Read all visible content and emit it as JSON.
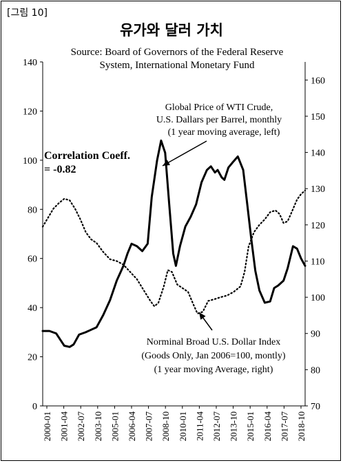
{
  "figure_tag": "[그림 10]",
  "title": "유가와 달러 가치",
  "source_lines": [
    "Source:  Board of Governors of the Federal Reserve",
    "System, International  Monetary Fund"
  ],
  "correlation_lines": [
    "Correlation Coeff.",
    "= -0.82"
  ],
  "chart_data": {
    "type": "line",
    "x_ticks": [
      "2000-01",
      "2001-04",
      "2002-07",
      "2003-10",
      "2005-01",
      "2006-04",
      "2007-07",
      "2008-10",
      "2010-01",
      "2011-04",
      "2012-07",
      "2013-10",
      "2015-01",
      "2016-04",
      "2017-07",
      "2018-10"
    ],
    "x_range": [
      2000.0,
      2019.5
    ],
    "y_left": {
      "min": 0,
      "max": 140,
      "ticks": [
        0,
        20,
        40,
        60,
        80,
        100,
        120,
        140
      ]
    },
    "y_right": {
      "min": 70,
      "max": 165,
      "ticks": [
        70,
        80,
        90,
        100,
        110,
        120,
        130,
        140,
        150,
        160
      ]
    },
    "series": [
      {
        "name": "Global Price of WTI Crude",
        "axis": "left",
        "style": "solid",
        "label_lines": [
          "Global Price of WTI Crude,",
          "U.S. Dallars per Barrel, monthly",
          "(1 year moving average, left)"
        ],
        "points": [
          [
            2000.0,
            30.5
          ],
          [
            2000.5,
            30.5
          ],
          [
            2001.0,
            29.5
          ],
          [
            2001.3,
            27
          ],
          [
            2001.6,
            24.5
          ],
          [
            2002.0,
            24
          ],
          [
            2002.3,
            25
          ],
          [
            2002.7,
            29
          ],
          [
            2003.2,
            30
          ],
          [
            2003.6,
            31
          ],
          [
            2004.0,
            32
          ],
          [
            2004.5,
            37
          ],
          [
            2005.0,
            43
          ],
          [
            2005.5,
            51
          ],
          [
            2006.0,
            57
          ],
          [
            2006.3,
            62
          ],
          [
            2006.6,
            66
          ],
          [
            2007.0,
            65
          ],
          [
            2007.4,
            63
          ],
          [
            2007.8,
            66
          ],
          [
            2008.1,
            85
          ],
          [
            2008.5,
            100
          ],
          [
            2008.8,
            108
          ],
          [
            2009.1,
            103
          ],
          [
            2009.4,
            82
          ],
          [
            2009.7,
            62
          ],
          [
            2009.9,
            57
          ],
          [
            2010.2,
            65
          ],
          [
            2010.6,
            73
          ],
          [
            2011.0,
            77
          ],
          [
            2011.4,
            82
          ],
          [
            2011.8,
            91
          ],
          [
            2012.2,
            96
          ],
          [
            2012.5,
            97.5
          ],
          [
            2012.8,
            95
          ],
          [
            2013.0,
            96
          ],
          [
            2013.3,
            93
          ],
          [
            2013.5,
            92
          ],
          [
            2013.8,
            97
          ],
          [
            2014.1,
            99
          ],
          [
            2014.5,
            101.5
          ],
          [
            2014.9,
            96
          ],
          [
            2015.2,
            82
          ],
          [
            2015.5,
            68
          ],
          [
            2015.8,
            55
          ],
          [
            2016.1,
            47
          ],
          [
            2016.5,
            42
          ],
          [
            2016.9,
            42.5
          ],
          [
            2017.2,
            48
          ],
          [
            2017.5,
            49
          ],
          [
            2017.9,
            51
          ],
          [
            2018.2,
            56
          ],
          [
            2018.6,
            65
          ],
          [
            2018.9,
            64
          ],
          [
            2019.2,
            60
          ],
          [
            2019.5,
            57
          ]
        ]
      },
      {
        "name": "Norminal Broad U.S. Dollar Index",
        "axis": "right",
        "style": "dotted",
        "label_lines": [
          "Norminal Broad U.S. Dollar Index",
          "(Goods Only, Jan 2006=100, montly)",
          "(1 year moving Average, right)"
        ],
        "points": [
          [
            2000.0,
            119.5
          ],
          [
            2000.4,
            122
          ],
          [
            2000.8,
            124.5
          ],
          [
            2001.2,
            126
          ],
          [
            2001.6,
            127.2
          ],
          [
            2002.0,
            126.8
          ],
          [
            2002.4,
            124.5
          ],
          [
            2002.8,
            121.5
          ],
          [
            2003.2,
            118
          ],
          [
            2003.6,
            116
          ],
          [
            2004.0,
            115
          ],
          [
            2004.5,
            112.5
          ],
          [
            2005.0,
            110.5
          ],
          [
            2005.5,
            110
          ],
          [
            2006.0,
            109
          ],
          [
            2006.5,
            107
          ],
          [
            2007.0,
            105
          ],
          [
            2007.5,
            102
          ],
          [
            2008.0,
            99
          ],
          [
            2008.3,
            97.5
          ],
          [
            2008.6,
            98.5
          ],
          [
            2009.0,
            103
          ],
          [
            2009.3,
            107.5
          ],
          [
            2009.6,
            107
          ],
          [
            2010.0,
            103.5
          ],
          [
            2010.4,
            102.5
          ],
          [
            2010.8,
            101.5
          ],
          [
            2011.2,
            98
          ],
          [
            2011.5,
            95.5
          ],
          [
            2011.9,
            96
          ],
          [
            2012.3,
            99
          ],
          [
            2012.8,
            99.5
          ],
          [
            2013.2,
            100
          ],
          [
            2013.7,
            100.5
          ],
          [
            2014.2,
            101.5
          ],
          [
            2014.7,
            103
          ],
          [
            2015.0,
            107
          ],
          [
            2015.3,
            114
          ],
          [
            2015.7,
            118
          ],
          [
            2016.1,
            120
          ],
          [
            2016.5,
            121.5
          ],
          [
            2016.9,
            123.5
          ],
          [
            2017.3,
            124
          ],
          [
            2017.6,
            123
          ],
          [
            2017.9,
            120.5
          ],
          [
            2018.2,
            121
          ],
          [
            2018.5,
            123.5
          ],
          [
            2018.9,
            127
          ],
          [
            2019.2,
            128.5
          ],
          [
            2019.5,
            129.5
          ]
        ]
      }
    ]
  }
}
